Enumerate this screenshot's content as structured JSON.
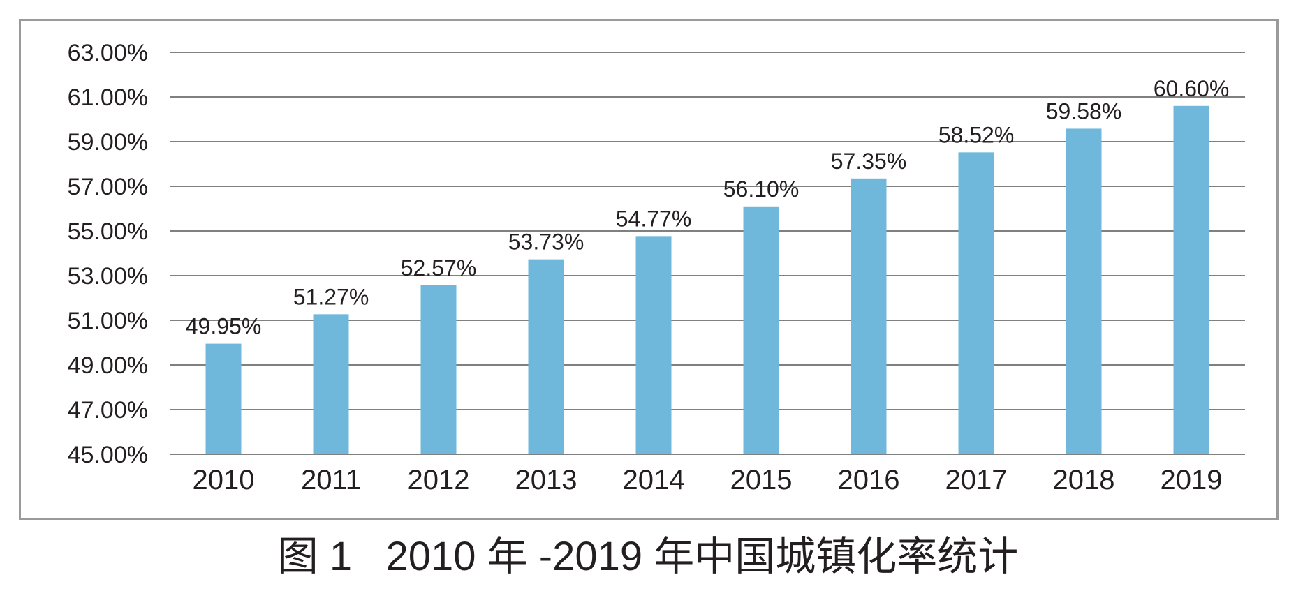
{
  "caption": "图 1   2010 年 -2019 年中国城镇化率统计",
  "chart_data": {
    "type": "bar",
    "categories": [
      "2010",
      "2011",
      "2012",
      "2013",
      "2014",
      "2015",
      "2016",
      "2017",
      "2018",
      "2019"
    ],
    "series": [
      {
        "values": [
          49.95,
          51.27,
          52.57,
          53.73,
          54.77,
          56.1,
          57.35,
          58.52,
          59.58,
          60.6
        ],
        "data_labels": [
          "49.95%",
          "51.27%",
          "52.57%",
          "53.73%",
          "54.77%",
          "56.10%",
          "57.35%",
          "58.52%",
          "59.58%",
          "60.60%"
        ],
        "color": "#6fb8dc"
      }
    ],
    "y_ticks": [
      45,
      47,
      49,
      51,
      53,
      55,
      57,
      59,
      61,
      63
    ],
    "y_tick_labels": [
      "45.00%",
      "47.00%",
      "49.00%",
      "51.00%",
      "53.00%",
      "55.00%",
      "57.00%",
      "59.00%",
      "61.00%",
      "63.00%"
    ],
    "ylim": [
      45,
      63
    ],
    "grid": true,
    "legend": "none",
    "title": "",
    "xlabel": "",
    "ylabel": "",
    "colors": {
      "bar": "#6fb8dc",
      "grid": "#808080",
      "text": "#231f20"
    }
  }
}
